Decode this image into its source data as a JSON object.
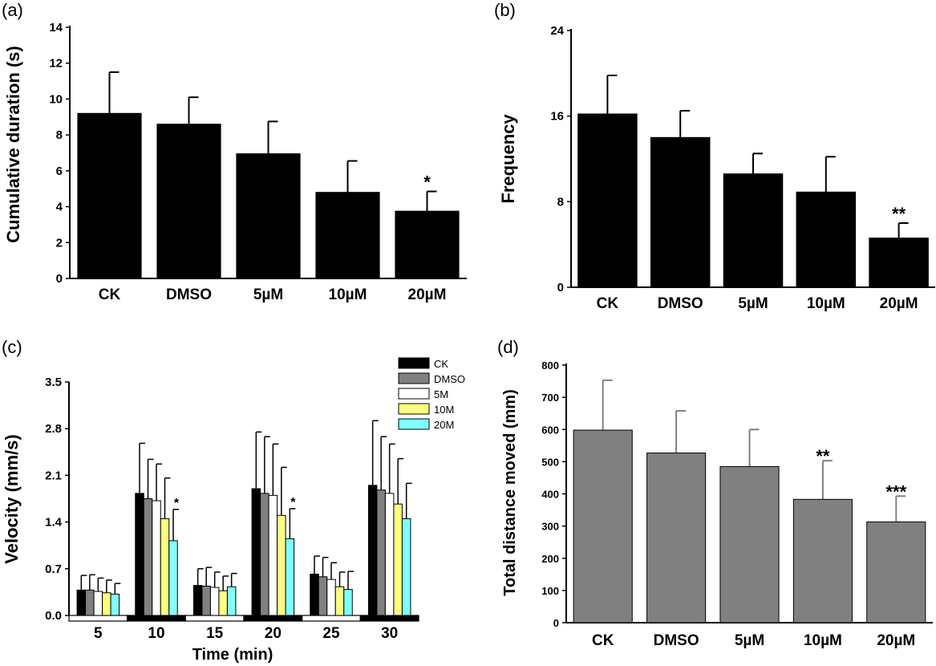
{
  "panel_labels": [
    "(a)",
    "(b)",
    "(c)",
    "(d)"
  ],
  "colors": {
    "black": "#000000",
    "grey": "#808080",
    "white": "#ffffff",
    "yellow": "#ffff80",
    "cyan": "#80ffff"
  },
  "chart_data": [
    {
      "type": "bar",
      "panel": "(a)",
      "ylabel": "Cumulative duration (s)",
      "categories": [
        "CK",
        "DMSO",
        "5µM",
        "10µM",
        "20µM"
      ],
      "values": [
        9.2,
        8.6,
        6.95,
        4.8,
        3.75
      ],
      "errors": [
        2.3,
        1.5,
        1.8,
        1.75,
        1.1
      ],
      "significance": [
        "",
        "",
        "",
        "",
        "*"
      ],
      "yticks": [
        "0",
        "2",
        "4",
        "6",
        "8",
        "10",
        "12",
        "14"
      ],
      "ylim": [
        0,
        14
      ],
      "bar_color": "#000000"
    },
    {
      "type": "bar",
      "panel": "(b)",
      "ylabel": "Frequency",
      "categories": [
        "CK",
        "DMSO",
        "5µM",
        "10µM",
        "20µM"
      ],
      "values": [
        16.2,
        14.0,
        10.6,
        8.9,
        4.6
      ],
      "errors": [
        3.6,
        2.5,
        1.9,
        3.3,
        1.4
      ],
      "significance": [
        "",
        "",
        "",
        "",
        "**"
      ],
      "yticks": [
        "0",
        "8",
        "16",
        "24"
      ],
      "ylim": [
        0,
        24
      ],
      "bar_color": "#000000"
    },
    {
      "type": "bar",
      "panel": "(c)",
      "ylabel": "Velocity (mm/s)",
      "xlabel": "Time (min)",
      "categories": [
        "5",
        "10",
        "15",
        "20",
        "25",
        "30"
      ],
      "yticks": [
        "0.0",
        "0.7",
        "1.4",
        "2.1",
        "2.8",
        "3.5"
      ],
      "ylim": [
        0,
        3.5
      ],
      "legend_position": "top-right",
      "series": [
        {
          "name": "CK",
          "color": "#000000",
          "values": [
            0.38,
            1.83,
            0.45,
            1.9,
            0.62,
            1.95
          ],
          "errors": [
            0.22,
            0.75,
            0.25,
            0.85,
            0.27,
            0.97
          ]
        },
        {
          "name": "DMSO",
          "color": "#808080",
          "values": [
            0.38,
            1.75,
            0.44,
            1.83,
            0.58,
            1.88
          ],
          "errors": [
            0.23,
            0.59,
            0.28,
            0.85,
            0.29,
            0.8
          ]
        },
        {
          "name": "5M",
          "color": "#ffffff",
          "values": [
            0.36,
            1.72,
            0.42,
            1.8,
            0.54,
            1.83
          ],
          "errors": [
            0.2,
            0.55,
            0.23,
            0.77,
            0.25,
            0.74
          ]
        },
        {
          "name": "10M",
          "color": "#ffff80",
          "values": [
            0.34,
            1.45,
            0.37,
            1.5,
            0.43,
            1.67
          ],
          "errors": [
            0.19,
            0.61,
            0.22,
            0.72,
            0.22,
            0.68
          ]
        },
        {
          "name": "20M",
          "color": "#80ffff",
          "values": [
            0.32,
            1.12,
            0.43,
            1.15,
            0.39,
            1.45
          ],
          "errors": [
            0.16,
            0.47,
            0.2,
            0.45,
            0.27,
            0.53
          ]
        }
      ],
      "significance": [
        {
          "category": "10",
          "series": "20M",
          "mark": "*"
        },
        {
          "category": "20",
          "series": "20M",
          "mark": "*"
        }
      ]
    },
    {
      "type": "bar",
      "panel": "(d)",
      "ylabel": "Total distance moved (mm)",
      "categories": [
        "CK",
        "DMSO",
        "5µM",
        "10µM",
        "20µM"
      ],
      "values": [
        598,
        527,
        485,
        383,
        313
      ],
      "errors": [
        155,
        131,
        115,
        120,
        80
      ],
      "significance": [
        "",
        "",
        "",
        "**",
        "***"
      ],
      "yticks": [
        "0",
        "100",
        "200",
        "300",
        "400",
        "500",
        "600",
        "700",
        "800"
      ],
      "ylim": [
        0,
        800
      ],
      "bar_color": "#808080",
      "error_color": "#808080"
    }
  ]
}
